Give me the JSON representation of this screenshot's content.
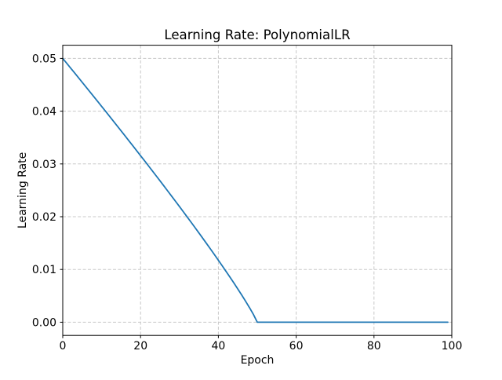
{
  "figure": {
    "background": "#ffffff",
    "spine_color": "#000000",
    "text_color": "#000000"
  },
  "chart_data": {
    "type": "line",
    "title": "Learning Rate: PolynomialLR",
    "xlabel": "Epoch",
    "ylabel": "Learning Rate",
    "xlim": [
      0,
      100
    ],
    "ylim": [
      -0.0025,
      0.0525
    ],
    "xticks": {
      "values": [
        0,
        20,
        40,
        60,
        80,
        100
      ],
      "labels": [
        "0",
        "20",
        "40",
        "60",
        "80",
        "100"
      ]
    },
    "yticks": {
      "values": [
        0.0,
        0.01,
        0.02,
        0.03,
        0.04,
        0.05
      ],
      "labels": [
        "0.00",
        "0.01",
        "0.02",
        "0.03",
        "0.04",
        "0.05"
      ]
    },
    "grid": {
      "visible": true,
      "style": "dashed",
      "color": "#c8c8c8"
    },
    "legend": {
      "visible": false
    },
    "schedule": {
      "name": "PolynomialLR",
      "initial_lr": 0.05,
      "total_iters": 50,
      "power": 0.9
    },
    "series": [
      {
        "name": "learning-rate",
        "color": "#1f77b4",
        "x": [
          0,
          1,
          2,
          3,
          4,
          5,
          6,
          7,
          8,
          9,
          10,
          11,
          12,
          13,
          14,
          15,
          16,
          17,
          18,
          19,
          20,
          21,
          22,
          23,
          24,
          25,
          26,
          27,
          28,
          29,
          30,
          31,
          32,
          33,
          34,
          35,
          36,
          37,
          38,
          39,
          40,
          41,
          42,
          43,
          44,
          45,
          46,
          47,
          48,
          49,
          50,
          51,
          52,
          53,
          54,
          55,
          56,
          57,
          58,
          59,
          60,
          61,
          62,
          63,
          64,
          65,
          66,
          67,
          68,
          69,
          70,
          71,
          72,
          73,
          74,
          75,
          76,
          77,
          78,
          79,
          80,
          81,
          82,
          83,
          84,
          85,
          86,
          87,
          88,
          89,
          90,
          91,
          92,
          93,
          94,
          95,
          96,
          97,
          98,
          99
        ],
        "y": [
          0.05,
          0.049099,
          0.048196,
          0.047292,
          0.046385,
          0.045477,
          0.044566,
          0.043653,
          0.042739,
          0.041822,
          0.040902,
          0.039981,
          0.039057,
          0.03813,
          0.037201,
          0.036269,
          0.035334,
          0.034396,
          0.033455,
          0.032512,
          0.031564,
          0.030624,
          0.029671,
          0.028716,
          0.027757,
          0.026794,
          0.025828,
          0.024857,
          0.023882,
          0.022903,
          0.021919,
          0.02093,
          0.019936,
          0.018936,
          0.017931,
          0.016919,
          0.0159,
          0.014875,
          0.013841,
          0.012798,
          0.011746,
          0.010683,
          0.009609,
          0.008521,
          0.007417,
          0.006295,
          0.00515,
          0.003974,
          0.002759,
          0.001479,
          0.0,
          0.0,
          0.0,
          0.0,
          0.0,
          0.0,
          0.0,
          0.0,
          0.0,
          0.0,
          0.0,
          0.0,
          0.0,
          0.0,
          0.0,
          0.0,
          0.0,
          0.0,
          0.0,
          0.0,
          0.0,
          0.0,
          0.0,
          0.0,
          0.0,
          0.0,
          0.0,
          0.0,
          0.0,
          0.0,
          0.0,
          0.0,
          0.0,
          0.0,
          0.0,
          0.0,
          0.0,
          0.0,
          0.0,
          0.0,
          0.0,
          0.0,
          0.0,
          0.0,
          0.0,
          0.0,
          0.0,
          0.0,
          0.0,
          0.0
        ]
      }
    ]
  }
}
